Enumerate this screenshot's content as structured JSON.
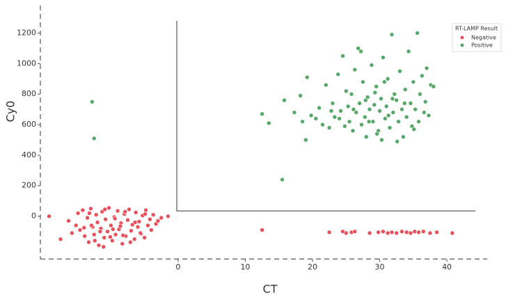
{
  "chart_data": {
    "type": "scatter",
    "xlabel": "CT",
    "ylabel": "Cy0",
    "xlim": [
      -20.5,
      46
    ],
    "ylim": [
      -280,
      1380
    ],
    "xticks": [
      0,
      10,
      20,
      30,
      40
    ],
    "yticks": [
      0,
      200,
      400,
      600,
      800,
      1000,
      1200
    ],
    "legend_title": "RT-LAMP Result",
    "legend_position": "upper right",
    "series": [
      {
        "name": "Negative",
        "color": "#e8505b",
        "x": [
          -19.2,
          -17.5,
          -16.3,
          -15.8,
          -15.2,
          -14.9,
          -14.6,
          -14.2,
          -13.9,
          -13.5,
          -13.3,
          -13.0,
          -12.7,
          -12.5,
          -12.2,
          -12.0,
          -11.8,
          -11.5,
          -11.3,
          -11.0,
          -10.8,
          -10.5,
          -10.3,
          -10.0,
          -9.8,
          -9.5,
          -9.3,
          -9.0,
          -8.8,
          -8.5,
          -8.3,
          -8.0,
          -7.8,
          -7.5,
          -7.3,
          -7.0,
          -6.8,
          -6.5,
          -6.3,
          -6.0,
          -5.8,
          -5.5,
          -5.3,
          -5.0,
          -4.8,
          -4.5,
          -4.2,
          -4.0,
          -3.7,
          -3.3,
          -3.0,
          -2.5,
          -1.5,
          -14.0,
          -13.2,
          -12.4,
          -11.6,
          -10.9,
          -10.1,
          -9.4,
          -8.6,
          -7.9,
          -7.1,
          -6.4,
          -5.6,
          -4.9,
          -12.9,
          -11.1,
          -9.7,
          -8.2,
          12.5,
          22.5,
          24.5,
          25,
          25.8,
          26.3,
          28.5,
          29.8,
          30.5,
          31.2,
          31.8,
          32.5,
          33.3,
          34,
          34.6,
          35.2,
          35.8,
          36.5,
          37.5,
          38.5,
          40.8
        ],
        "values": [
          0,
          -150,
          -30,
          -110,
          -60,
          20,
          -90,
          40,
          -130,
          -10,
          -170,
          50,
          -70,
          -120,
          10,
          -40,
          -190,
          -80,
          30,
          -140,
          -20,
          -100,
          55,
          -60,
          -160,
          -5,
          -120,
          35,
          -85,
          -45,
          -180,
          15,
          -130,
          -25,
          45,
          -95,
          -55,
          -150,
          25,
          -70,
          -35,
          -115,
          5,
          -140,
          40,
          -60,
          -20,
          -90,
          10,
          -50,
          -30,
          -10,
          0,
          -75,
          20,
          -160,
          -100,
          45,
          -135,
          -15,
          -65,
          30,
          -170,
          -40,
          -110,
          15,
          -60,
          -200,
          -85,
          -125,
          -90,
          -105,
          -100,
          -110,
          -105,
          -100,
          -110,
          -105,
          -100,
          -110,
          -105,
          -110,
          -100,
          -105,
          -110,
          -100,
          -105,
          -100,
          -110,
          -105,
          -110
        ]
      },
      {
        "name": "Positive",
        "color": "#55a868",
        "x": [
          -12.8,
          -12.5,
          15.5,
          12.5,
          13.5,
          15.8,
          17.3,
          18.2,
          18.5,
          19,
          19.2,
          19.8,
          20.5,
          21,
          21.5,
          22,
          22.5,
          23,
          23.3,
          23.8,
          24.2,
          24.5,
          24.8,
          25,
          25.3,
          25.5,
          25.8,
          26,
          26.3,
          26.5,
          26.8,
          27,
          27.3,
          27.5,
          27.8,
          28,
          28.2,
          28.5,
          28.8,
          29,
          29.2,
          29.5,
          29.8,
          30,
          30.2,
          30.5,
          30.8,
          31,
          31.2,
          31.5,
          31.8,
          32,
          32.2,
          32.5,
          32.8,
          33,
          33.3,
          33.5,
          33.8,
          34,
          34.3,
          34.6,
          34.8,
          35,
          35.3,
          35.6,
          35.8,
          36,
          36.3,
          36.6,
          36.8,
          37,
          37.3,
          37.6,
          38,
          27.2,
          30.3,
          32.6,
          29.3,
          31.3,
          28.4,
          26.1,
          24,
          22.8,
          33.7,
          35.1,
          30.7,
          27.9,
          29.6,
          31.9
        ],
        "values": [
          750,
          510,
          240,
          670,
          610,
          760,
          680,
          790,
          620,
          500,
          910,
          660,
          640,
          710,
          600,
          860,
          580,
          740,
          650,
          930,
          690,
          1050,
          590,
          820,
          720,
          620,
          800,
          560,
          960,
          680,
          1100,
          740,
          600,
          880,
          650,
          520,
          780,
          700,
          990,
          620,
          730,
          850,
          560,
          690,
          770,
          1040,
          640,
          720,
          900,
          580,
          1190,
          680,
          800,
          760,
          620,
          950,
          700,
          520,
          830,
          650,
          1080,
          740,
          590,
          880,
          700,
          1200,
          620,
          800,
          920,
          680,
          750,
          970,
          660,
          860,
          850,
          1080,
          500,
          490,
          810,
          660,
          620,
          700,
          640,
          690,
          740,
          570,
          880,
          760,
          540,
          770
        ]
      }
    ]
  }
}
